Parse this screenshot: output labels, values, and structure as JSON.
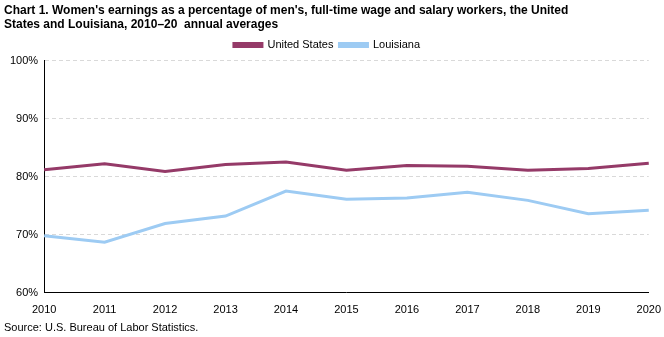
{
  "chart_data": {
    "type": "line",
    "title": [
      "Chart 1. Women's earnings as a percentage of men's, full-time wage and salary workers, the United",
      "States and Louisiana, 2010–20  annual averages"
    ],
    "source": "Source: U.S. Bureau of Labor Statistics.",
    "categories": [
      "2010",
      "2011",
      "2012",
      "2013",
      "2014",
      "2015",
      "2016",
      "2017",
      "2018",
      "2019",
      "2020"
    ],
    "series": [
      {
        "name": "United States",
        "color": "#953a68",
        "values": [
          81.2,
          82.2,
          80.9,
          82.1,
          82.5,
          81.1,
          81.9,
          81.8,
          81.1,
          81.4,
          82.3
        ]
      },
      {
        "name": "Louisiana",
        "color": "#9dcbf3",
        "values": [
          69.8,
          68.7,
          71.9,
          73.2,
          77.5,
          76.1,
          76.3,
          77.3,
          75.9,
          73.6,
          74.2
        ]
      }
    ],
    "ylim": [
      60,
      100
    ],
    "yticks": [
      {
        "value": 60,
        "label": "60%"
      },
      {
        "value": 70,
        "label": "70%"
      },
      {
        "value": 80,
        "label": "80%"
      },
      {
        "value": 90,
        "label": "90%"
      },
      {
        "value": 100,
        "label": "100%"
      }
    ],
    "grid": true,
    "legend": "top"
  }
}
